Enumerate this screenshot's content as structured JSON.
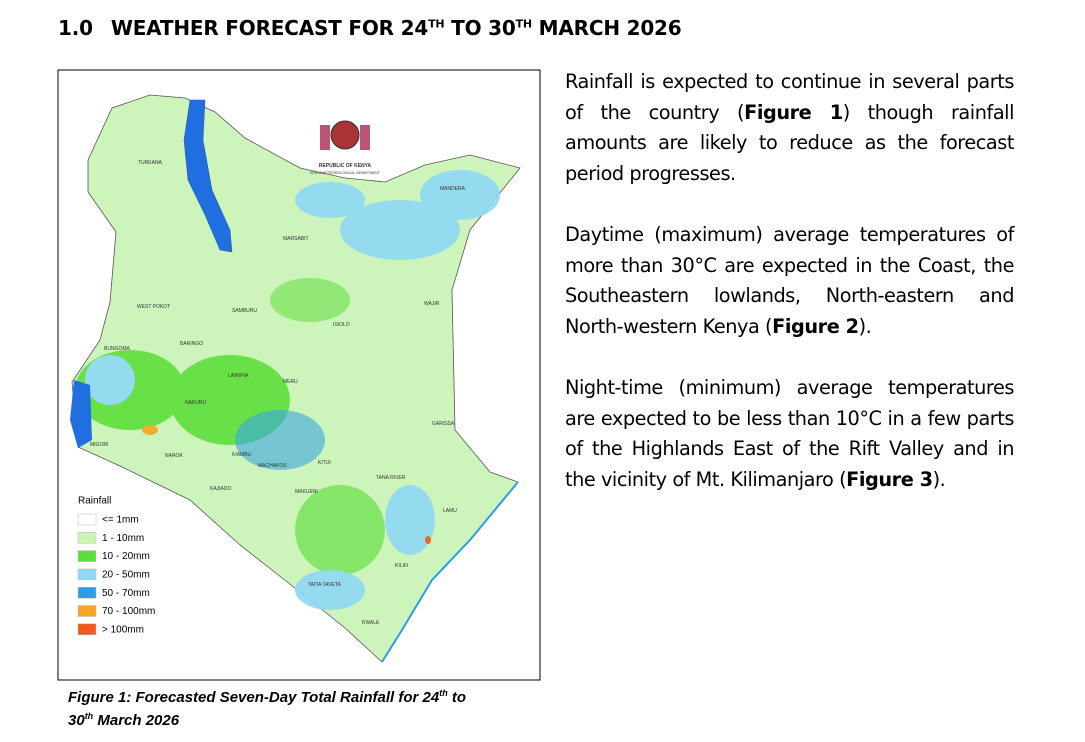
{
  "heading": {
    "number": "1.0",
    "parts": [
      "WEATHER FORECAST FOR 24",
      "TH",
      " TO 30",
      "TH",
      " MARCH 2026"
    ]
  },
  "figure": {
    "logo": {
      "title": "REPUBLIC OF KENYA",
      "subtitle": "KENYA METEOROLOGICAL DEPARTMENT"
    },
    "map_labels": [
      "TURKANA",
      "MARSABIT",
      "MANDERA",
      "WAJIR",
      "WEST POKOT",
      "SAMBURU",
      "ISIOLO",
      "BARINGO",
      "LAIKIPIA",
      "MERU",
      "NAKURU",
      "NAROK",
      "MIGORI",
      "GARISSA",
      "KITUI",
      "TANA RIVER",
      "MACHAKOS",
      "MAKUENI",
      "KAJIADO",
      "LAMU",
      "KILIFI",
      "TAITA TAVETA",
      "KWALE",
      "BUNGOMA",
      "KIAMBU"
    ],
    "legend": {
      "title": "Rainfall",
      "items": [
        {
          "label": "<= 1mm",
          "color": "#ffffff"
        },
        {
          "label": "1 - 10mm",
          "color": "#c9f5b5"
        },
        {
          "label": "10 - 20mm",
          "color": "#5ede3c"
        },
        {
          "label": "20 - 50mm",
          "color": "#8fd9f5"
        },
        {
          "label": "50 - 70mm",
          "color": "#2a9ee6"
        },
        {
          "label": "70 - 100mm",
          "color": "#f5a623"
        },
        {
          "label": "> 100mm",
          "color": "#f05a1e"
        }
      ]
    },
    "caption": [
      "Figure 1: Forecasted Seven-Day Total Rainfall for 24",
      "th",
      " to",
      "30",
      "th",
      " March 2026"
    ]
  },
  "paragraphs": [
    [
      "Rainfall is expected to continue in several parts of the country (",
      "Figure 1",
      ") though rainfall amounts are likely to reduce as the forecast period progresses."
    ],
    [
      "Daytime (maximum) average temperatures of more than 30°C are expected in the Coast, the Southeastern lowlands, North-eastern and North-western Kenya (",
      "Figure 2",
      ")."
    ],
    [
      "Night-time (minimum) average temperatures are expected to be less than 10°C in a few parts of the Highlands East of the Rift Valley and in the vicinity of Mt. Kilimanjaro (",
      "Figure 3",
      ")."
    ]
  ]
}
